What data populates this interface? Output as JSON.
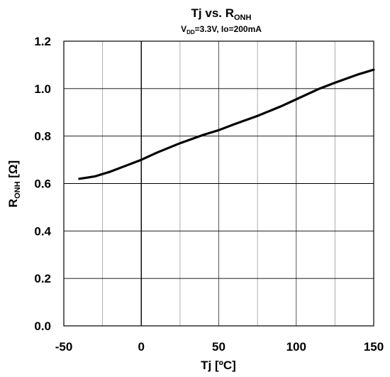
{
  "chart_data": {
    "type": "line",
    "title": {
      "main": "Tj vs. R",
      "main_sub": "ONH"
    },
    "subtitle": {
      "pre": "V",
      "sub": "DD",
      "post": "=3.3V, Io=200mA"
    },
    "xlabel": "Tj [ºC]",
    "ylabel": {
      "pre": "R",
      "sub": "ONH",
      "post": " [Ω]"
    },
    "xlim": [
      -50,
      150
    ],
    "ylim": [
      0.0,
      1.2
    ],
    "x_major_step": 50,
    "x_minor_step": 25,
    "y_step": 0.2,
    "x_tick_labels": [
      "-50",
      "0",
      "50",
      "100",
      "150"
    ],
    "y_tick_labels": [
      "0.0",
      "0.2",
      "0.4",
      "0.6",
      "0.8",
      "1.0",
      "1.2"
    ],
    "grid": true,
    "series": [
      {
        "x": [
          -40,
          -35,
          -30,
          -25,
          -20,
          -10,
          0,
          10,
          25,
          40,
          50,
          60,
          75,
          90,
          100,
          115,
          125,
          140,
          150
        ],
        "y": [
          0.62,
          0.625,
          0.63,
          0.64,
          0.65,
          0.675,
          0.7,
          0.73,
          0.77,
          0.805,
          0.825,
          0.85,
          0.885,
          0.925,
          0.955,
          1.0,
          1.025,
          1.06,
          1.08
        ]
      }
    ]
  }
}
